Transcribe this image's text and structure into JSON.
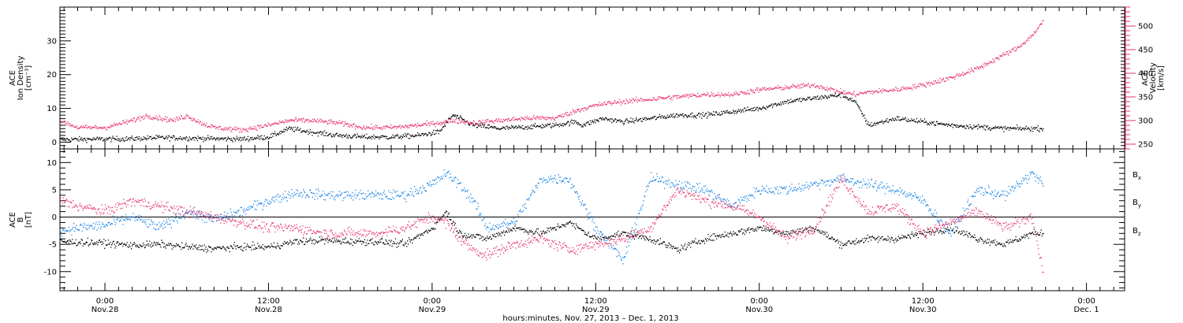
{
  "chart_data": [
    {
      "type": "scatter",
      "panel": "plasma",
      "ylabel": [
        "ACE",
        "Ion Density",
        "[cm⁻³]"
      ],
      "ylabel_right": [
        "ACE",
        "Velocity",
        "[km/s]"
      ],
      "ylim": [
        -2,
        40
      ],
      "ylim_right": [
        240,
        540
      ],
      "yticks": [
        0,
        10,
        20,
        30
      ],
      "yticks_right": [
        250,
        300,
        350,
        400,
        450,
        500
      ],
      "series": [
        {
          "axis": "left",
          "color": "#000000",
          "x": [
            -3.3,
            -2,
            0,
            2,
            4,
            6,
            8,
            10,
            12,
            13.5,
            15,
            17,
            19,
            21,
            23,
            24.5,
            25.5,
            27,
            29,
            31,
            33,
            34.5,
            35,
            36.5,
            38,
            40,
            42,
            44,
            46,
            48,
            50,
            52,
            54,
            55,
            56,
            58,
            60,
            62,
            64,
            66,
            68,
            68.8
          ],
          "y": [
            0.8,
            0.8,
            0.9,
            1,
            1.3,
            1.2,
            1,
            0.9,
            1.5,
            4,
            3,
            2,
            1.5,
            1.5,
            2,
            3,
            8,
            5,
            4,
            4.5,
            5,
            6,
            5,
            7,
            6,
            7,
            8,
            8,
            9,
            10,
            12,
            13,
            14,
            12,
            5,
            7,
            6,
            5,
            4.5,
            4,
            4,
            4
          ]
        },
        {
          "axis": "right",
          "color": "#e8336b",
          "x": [
            -3.3,
            -2,
            0,
            2,
            3,
            4,
            5,
            6,
            7,
            8,
            10,
            12,
            13.5,
            15,
            17,
            19,
            21,
            23,
            24.5,
            25.5,
            27,
            29,
            31,
            33,
            34.5,
            35,
            36.5,
            38,
            40,
            42,
            44,
            46,
            48,
            50,
            52,
            54,
            55,
            56,
            58,
            60,
            62,
            64,
            66,
            67,
            68,
            68.8
          ],
          "y": [
            300,
            285,
            285,
            300,
            310,
            305,
            300,
            310,
            295,
            285,
            280,
            290,
            300,
            300,
            295,
            285,
            285,
            290,
            295,
            300,
            295,
            300,
            305,
            305,
            320,
            325,
            335,
            340,
            345,
            350,
            355,
            355,
            365,
            370,
            375,
            360,
            355,
            360,
            365,
            375,
            390,
            410,
            440,
            455,
            480,
            510
          ]
        }
      ]
    },
    {
      "type": "scatter",
      "panel": "magnetic-field",
      "ylabel": [
        "ACE",
        "B",
        "[nT]"
      ],
      "ylim": [
        -13.5,
        12.5
      ],
      "yticks": [
        -10,
        -5,
        0,
        5,
        10
      ],
      "series": [
        {
          "name": "Bx",
          "color": "#000000",
          "x": [
            -3.3,
            0,
            2,
            4,
            6,
            8,
            10,
            12,
            14,
            16,
            18,
            20,
            22,
            24,
            25,
            26,
            28,
            30,
            32,
            34,
            36,
            38,
            40,
            42,
            44,
            46,
            48,
            50,
            52,
            54,
            56,
            58,
            60,
            62,
            64,
            66,
            68,
            68.8
          ],
          "y": [
            -4.5,
            -4.8,
            -5.2,
            -5,
            -5.5,
            -5.8,
            -5.5,
            -5.5,
            -4.5,
            -4.3,
            -4.5,
            -4.5,
            -5,
            -2,
            1,
            -3,
            -4,
            -2,
            -3,
            -1,
            -4,
            -3,
            -4,
            -6,
            -4,
            -3,
            -2,
            -3,
            -2,
            -5,
            -4,
            -4,
            -3,
            -2,
            -4,
            -5,
            -3,
            -3
          ]
        },
        {
          "name": "By",
          "color": "#1a85e6",
          "x": [
            -3.3,
            -2,
            0,
            2,
            4,
            6,
            8,
            10,
            12,
            14,
            16,
            18,
            20,
            22,
            24,
            25,
            26,
            27,
            28,
            30,
            32,
            34,
            36,
            38,
            40,
            42,
            44,
            46,
            48,
            50,
            52,
            54,
            56,
            58,
            60,
            62,
            64,
            66,
            68,
            68.8
          ],
          "y": [
            -2.5,
            -2,
            -1.5,
            0,
            -2,
            1,
            -0.5,
            1,
            3,
            4.5,
            4,
            4,
            4,
            4,
            6,
            8,
            6,
            3,
            -2,
            -1,
            7,
            7,
            -2,
            -8,
            7,
            6,
            5,
            2,
            5,
            5,
            6,
            7,
            6,
            5,
            3,
            -3,
            5,
            4,
            8,
            6
          ]
        },
        {
          "name": "Bz",
          "color": "#e8336b",
          "x": [
            -3.3,
            -2,
            0,
            2,
            4,
            6,
            8,
            10,
            12,
            14,
            16,
            18,
            20,
            22,
            24,
            25,
            26,
            27,
            28,
            30,
            32,
            34,
            36,
            38,
            40,
            42,
            44,
            46,
            48,
            50,
            52,
            54,
            56,
            58,
            60,
            62,
            64,
            66,
            68,
            68.8
          ],
          "y": [
            3,
            2,
            1,
            3,
            2,
            1,
            0,
            -1,
            -2,
            -2,
            -3,
            -3,
            -3,
            -2,
            0,
            -1,
            -4,
            -6,
            -7,
            -5,
            -4,
            -6,
            -5,
            -4,
            -2,
            5,
            3,
            2,
            0,
            -4,
            -2,
            7,
            1,
            2,
            -3,
            -1,
            1,
            -2,
            0,
            -10
          ]
        }
      ]
    }
  ],
  "legend": [
    {
      "base": "B",
      "sub": "x",
      "color": "#000000"
    },
    {
      "base": "B",
      "sub": "y",
      "color": "#1a85e6"
    },
    {
      "base": "B",
      "sub": "z",
      "color": "#e8336b"
    }
  ],
  "x_axis": {
    "xlim": [
      -3.3,
      74.8
    ],
    "ticks": [
      {
        "x": 0,
        "time": "0:00",
        "date": "Nov.28"
      },
      {
        "x": 12,
        "time": "12:00",
        "date": "Nov.28"
      },
      {
        "x": 24,
        "time": "0:00",
        "date": "Nov.29"
      },
      {
        "x": 36,
        "time": "12:00",
        "date": "Nov.29"
      },
      {
        "x": 48,
        "time": "0:00",
        "date": "Nov.30"
      },
      {
        "x": 60,
        "time": "12:00",
        "date": "Nov.30"
      },
      {
        "x": 72,
        "time": "0:00",
        "date": "Dec. 1"
      }
    ],
    "label": "hours:minutes, Nov. 27, 2013 – Dec.  1, 2013"
  }
}
